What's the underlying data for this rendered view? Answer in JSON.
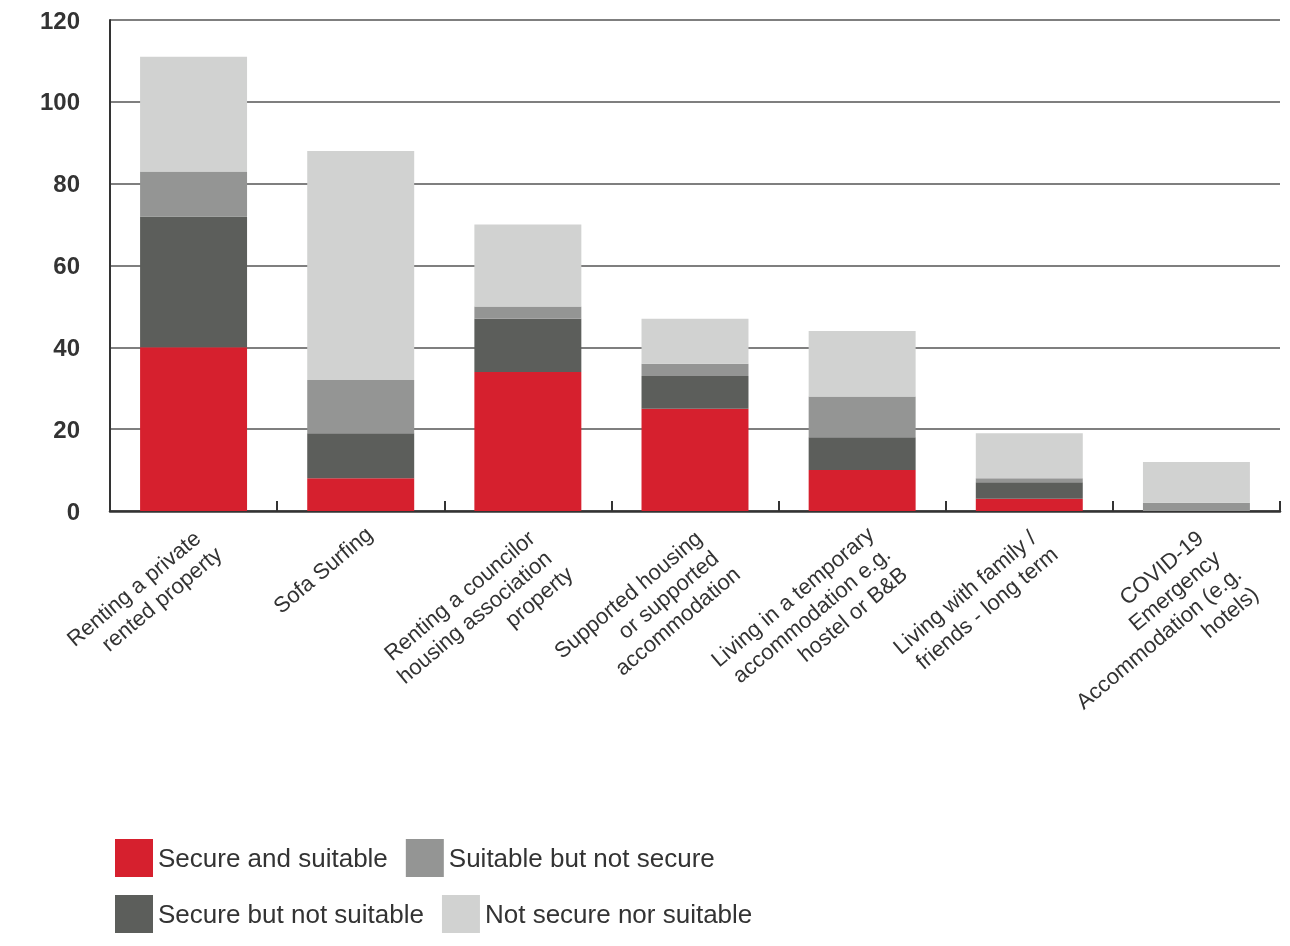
{
  "chart_data": {
    "type": "bar",
    "stacked": true,
    "categories": [
      "Renting a private rented property",
      "Sofa Surfing",
      "Renting a councilor housing association property",
      "Supported housing or supported accommodation",
      "Living in a temporary accommodation e.g. hostel or B&B",
      "Living with family / friends - long term",
      "COVID-19 Emergency Accommodation (e.g. hotels)"
    ],
    "series": [
      {
        "name": "Secure and suitable",
        "color": "#d6202e",
        "values": [
          40,
          8,
          34,
          25,
          10,
          3,
          0
        ]
      },
      {
        "name": "Secure but not suitable",
        "color": "#5c5e5b",
        "values": [
          32,
          11,
          13,
          8,
          8,
          4,
          0
        ]
      },
      {
        "name": "Suitable but not secure",
        "color": "#949594",
        "values": [
          11,
          13,
          3,
          3,
          10,
          1,
          2
        ]
      },
      {
        "name": "Not secure nor suitable",
        "color": "#d1d2d1",
        "values": [
          28,
          56,
          20,
          11,
          16,
          11,
          10
        ]
      }
    ],
    "ylim": [
      0,
      120
    ],
    "yticks": [
      0,
      20,
      40,
      60,
      80,
      100,
      120
    ],
    "grid": "y",
    "legend": "bottom"
  }
}
